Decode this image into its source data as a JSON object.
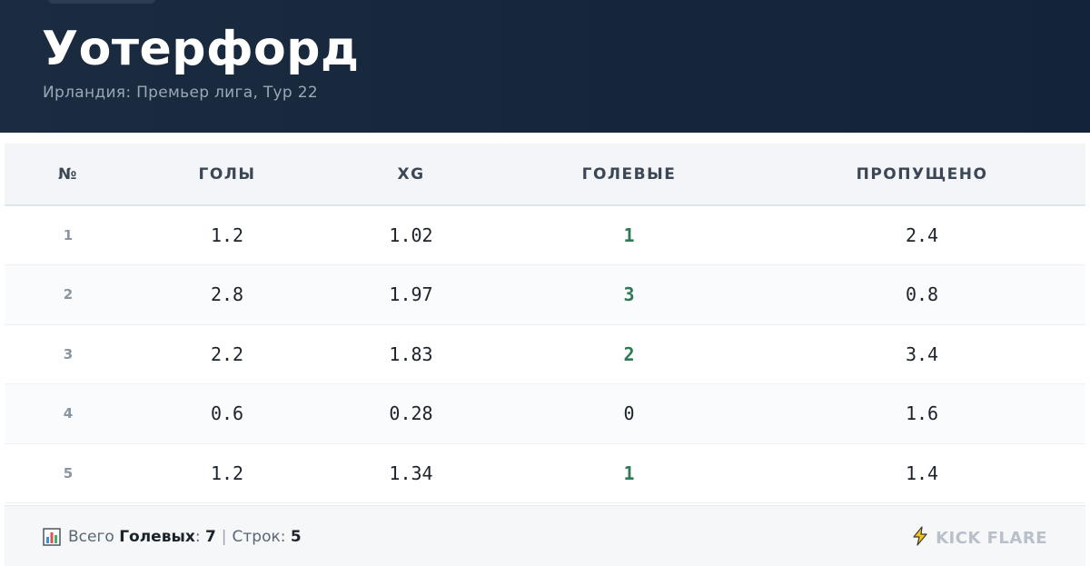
{
  "header": {
    "title": "Уотерфорд",
    "subtitle": "Ирландия: Премьер лига, Тур 22"
  },
  "table": {
    "columns": [
      "№",
      "ГОЛЫ",
      "XG",
      "ГОЛЕВЫЕ",
      "ПРОПУЩЕНО"
    ],
    "rows": [
      {
        "num": "1",
        "goals": "1.2",
        "xg": "1.02",
        "scoring": "1",
        "conceded": "2.4"
      },
      {
        "num": "2",
        "goals": "2.8",
        "xg": "1.97",
        "scoring": "3",
        "conceded": "0.8"
      },
      {
        "num": "3",
        "goals": "2.2",
        "xg": "1.83",
        "scoring": "2",
        "conceded": "3.4"
      },
      {
        "num": "4",
        "goals": "0.6",
        "xg": "0.28",
        "scoring": "0",
        "conceded": "1.6"
      },
      {
        "num": "5",
        "goals": "1.2",
        "xg": "1.34",
        "scoring": "1",
        "conceded": "1.4"
      }
    ]
  },
  "footer": {
    "icon": "bar-chart-icon",
    "total_prefix": "Всего",
    "total_label": "Голевых",
    "total_colon": ":",
    "total_value": "7",
    "separator": "|",
    "rows_label": "Строк:",
    "rows_value": "5",
    "brand_icon": "lightning-bolt-icon",
    "brand": "KICK FLARE"
  },
  "colors": {
    "header_bg": "#1b2b40",
    "accent_green": "#2e7a56",
    "brand_gray": "#b9c0c9"
  }
}
